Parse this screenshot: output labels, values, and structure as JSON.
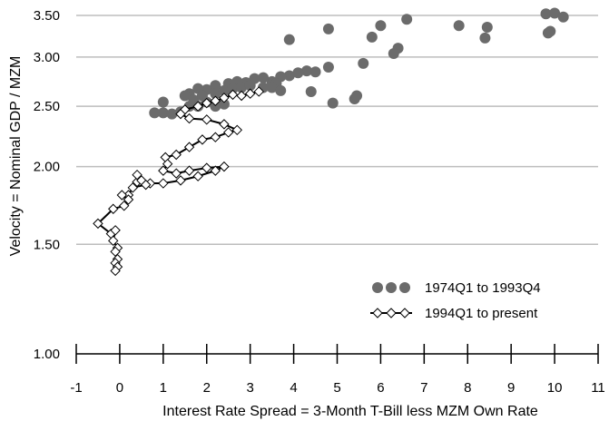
{
  "chart_data": {
    "type": "scatter",
    "title": "",
    "xlabel": "Interest Rate Spread = 3-Month T-Bill less MZM Own Rate",
    "ylabel": "Velocity = Nominal GDP / MZM",
    "xlim": [
      -1,
      11
    ],
    "ylim": [
      1.0,
      3.55
    ],
    "y_scale": "log",
    "x_ticks": [
      -1,
      0,
      1,
      2,
      3,
      4,
      5,
      6,
      7,
      8,
      9,
      10,
      11
    ],
    "x_tick_labels": [
      "-1",
      "0",
      "1",
      "2",
      "3",
      "4",
      "5",
      "6",
      "7",
      "8",
      "9",
      "10",
      "11"
    ],
    "y_ticks": [
      1.0,
      1.5,
      2.0,
      2.5,
      3.0,
      3.5
    ],
    "y_tick_labels": [
      "1.00",
      "1.50",
      "2.00",
      "2.50",
      "3.00",
      "3.50"
    ],
    "grid": "horizontal",
    "legend_position": "bottom-right",
    "series": [
      {
        "name": "1974Q1 to 1993Q4",
        "marker": "circle",
        "color": "#6b6b6b",
        "points": [
          [
            9.8,
            3.52
          ],
          [
            10.0,
            3.53
          ],
          [
            10.2,
            3.48
          ],
          [
            9.9,
            3.3
          ],
          [
            9.85,
            3.28
          ],
          [
            7.8,
            3.37
          ],
          [
            8.45,
            3.35
          ],
          [
            8.4,
            3.22
          ],
          [
            6.6,
            3.45
          ],
          [
            6.0,
            3.37
          ],
          [
            5.8,
            3.23
          ],
          [
            6.4,
            3.1
          ],
          [
            6.3,
            3.04
          ],
          [
            4.8,
            3.33
          ],
          [
            3.9,
            3.2
          ],
          [
            5.6,
            2.93
          ],
          [
            4.8,
            2.89
          ],
          [
            4.5,
            2.84
          ],
          [
            4.3,
            2.85
          ],
          [
            4.1,
            2.83
          ],
          [
            3.9,
            2.8
          ],
          [
            3.7,
            2.79
          ],
          [
            3.5,
            2.74
          ],
          [
            3.6,
            2.72
          ],
          [
            3.3,
            2.78
          ],
          [
            3.1,
            2.77
          ],
          [
            2.9,
            2.73
          ],
          [
            2.7,
            2.74
          ],
          [
            2.5,
            2.72
          ],
          [
            2.2,
            2.7
          ],
          [
            2.0,
            2.66
          ],
          [
            1.8,
            2.67
          ],
          [
            1.6,
            2.62
          ],
          [
            1.5,
            2.6
          ],
          [
            1.7,
            2.56
          ],
          [
            1.9,
            2.6
          ],
          [
            2.2,
            2.62
          ],
          [
            2.4,
            2.65
          ],
          [
            2.6,
            2.67
          ],
          [
            2.8,
            2.68
          ],
          [
            3.0,
            2.7
          ],
          [
            3.3,
            2.68
          ],
          [
            3.5,
            2.68
          ],
          [
            3.7,
            2.65
          ],
          [
            4.4,
            2.64
          ],
          [
            4.9,
            2.53
          ],
          [
            5.4,
            2.57
          ],
          [
            5.45,
            2.6
          ],
          [
            1.0,
            2.54
          ],
          [
            0.8,
            2.44
          ],
          [
            1.0,
            2.44
          ],
          [
            1.2,
            2.43
          ],
          [
            1.4,
            2.45
          ],
          [
            1.6,
            2.5
          ],
          [
            1.8,
            2.5
          ],
          [
            2.0,
            2.54
          ],
          [
            2.2,
            2.5
          ],
          [
            2.4,
            2.52
          ]
        ]
      },
      {
        "name": "1994Q1 to present",
        "marker": "diamond",
        "color": "#000000",
        "points": [
          [
            3.2,
            2.64
          ],
          [
            3.0,
            2.62
          ],
          [
            2.8,
            2.6
          ],
          [
            2.6,
            2.61
          ],
          [
            2.4,
            2.58
          ],
          [
            2.2,
            2.55
          ],
          [
            2.0,
            2.53
          ],
          [
            1.8,
            2.5
          ],
          [
            1.5,
            2.47
          ],
          [
            1.4,
            2.43
          ],
          [
            1.6,
            2.39
          ],
          [
            2.0,
            2.38
          ],
          [
            2.4,
            2.34
          ],
          [
            2.7,
            2.29
          ],
          [
            2.5,
            2.27
          ],
          [
            2.2,
            2.23
          ],
          [
            1.9,
            2.21
          ],
          [
            1.6,
            2.15
          ],
          [
            1.3,
            2.09
          ],
          [
            1.05,
            2.07
          ],
          [
            1.1,
            2.02
          ],
          [
            1.0,
            1.97
          ],
          [
            1.3,
            1.95
          ],
          [
            1.6,
            1.97
          ],
          [
            2.0,
            1.99
          ],
          [
            2.4,
            2.0
          ],
          [
            2.2,
            1.97
          ],
          [
            1.8,
            1.93
          ],
          [
            1.4,
            1.9
          ],
          [
            1.0,
            1.88
          ],
          [
            0.7,
            1.88
          ],
          [
            0.4,
            1.89
          ],
          [
            0.5,
            1.9
          ],
          [
            0.4,
            1.94
          ],
          [
            0.6,
            1.87
          ],
          [
            0.3,
            1.85
          ],
          [
            0.2,
            1.8
          ],
          [
            0.05,
            1.8
          ],
          [
            0.2,
            1.77
          ],
          [
            0.1,
            1.73
          ],
          [
            -0.15,
            1.71
          ],
          [
            -0.5,
            1.62
          ],
          [
            -0.2,
            1.56
          ],
          [
            -0.1,
            1.58
          ],
          [
            -0.15,
            1.52
          ],
          [
            -0.05,
            1.48
          ],
          [
            -0.1,
            1.46
          ],
          [
            -0.05,
            1.42
          ],
          [
            -0.1,
            1.4
          ],
          [
            -0.05,
            1.38
          ],
          [
            -0.1,
            1.36
          ]
        ]
      }
    ]
  }
}
